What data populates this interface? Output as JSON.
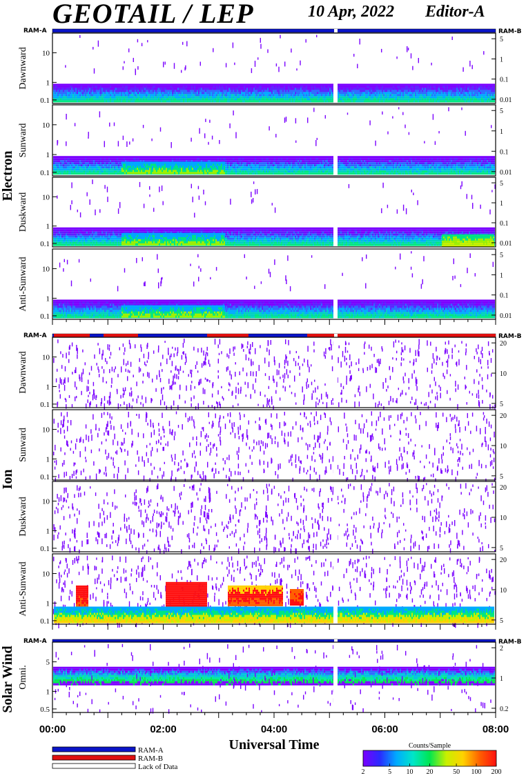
{
  "header": {
    "title": "GEOTAIL / LEP",
    "date": "10 Apr, 2022",
    "editor": "Editor-A"
  },
  "colors": {
    "ram_a": "#0a14c8",
    "ram_b": "#e01010",
    "lack": "#ffffff",
    "colorbar": [
      "#7a00ff",
      "#2a2aff",
      "#00aaff",
      "#00e6c8",
      "#00e650",
      "#c8f000",
      "#ffd200",
      "#ff6000",
      "#ff1010"
    ]
  },
  "chart_data": {
    "type": "heatmap",
    "xlabel": "Universal Time",
    "x_ticks": [
      "00:00",
      "02:00",
      "04:00",
      "06:00",
      "08:00"
    ],
    "xlim": [
      "00:00",
      "08:00"
    ],
    "groups": [
      {
        "label": "Electron",
        "ram_labels": [
          "RAM-A",
          "RAM-B"
        ],
        "panels": [
          {
            "label": "Dawnward",
            "left_ticks": [
              "10",
              "1",
              "0.1"
            ],
            "right_ticks": [
              "5",
              "1",
              "0.1",
              "0.01"
            ]
          },
          {
            "label": "Sunward",
            "left_ticks": [
              "10",
              "1",
              "0.1"
            ],
            "right_ticks": [
              "5",
              "1",
              "0.1",
              "0.01"
            ]
          },
          {
            "label": "Duskward",
            "left_ticks": [
              "10",
              "1",
              "0.1"
            ],
            "right_ticks": [
              "5",
              "1",
              "0.1",
              "0.01"
            ]
          },
          {
            "label": "Anti-Sunward",
            "left_ticks": [
              "10",
              "1",
              "0.1"
            ],
            "right_ticks": [
              "5",
              "1",
              "0.1",
              "0.01"
            ]
          }
        ]
      },
      {
        "label": "Ion",
        "ram_labels": [
          "RAM-A",
          "RAM-B"
        ],
        "panels": [
          {
            "label": "Dawnward",
            "left_ticks": [
              "10",
              "1",
              "0.1"
            ],
            "right_ticks": [
              "20",
              "10",
              "5"
            ]
          },
          {
            "label": "Sunward",
            "left_ticks": [
              "10",
              "1",
              "0.1"
            ],
            "right_ticks": [
              "20",
              "10",
              "5"
            ]
          },
          {
            "label": "Duskward",
            "left_ticks": [
              "10",
              "1",
              "0.1"
            ],
            "right_ticks": [
              "20",
              "10",
              "5"
            ]
          },
          {
            "label": "Anti-Sunward",
            "left_ticks": [
              "10",
              "1",
              "0.1"
            ],
            "right_ticks": [
              "20",
              "10",
              "5"
            ]
          }
        ]
      },
      {
        "label": "Solar Wind",
        "ram_labels": [
          "RAM-A",
          "RAM-B"
        ],
        "panels": [
          {
            "label": "Omni.",
            "left_ticks": [
              "5",
              "1",
              "0.5"
            ],
            "right_ticks": [
              "2",
              "1",
              "0.2"
            ]
          }
        ]
      }
    ],
    "legend": {
      "items": [
        "RAM-A",
        "RAM-B",
        "Lack of Data"
      ]
    },
    "colorbar": {
      "title": "Counts/Sample",
      "ticks": [
        "2",
        "5",
        "10",
        "20",
        "50",
        "100",
        "200"
      ]
    }
  }
}
